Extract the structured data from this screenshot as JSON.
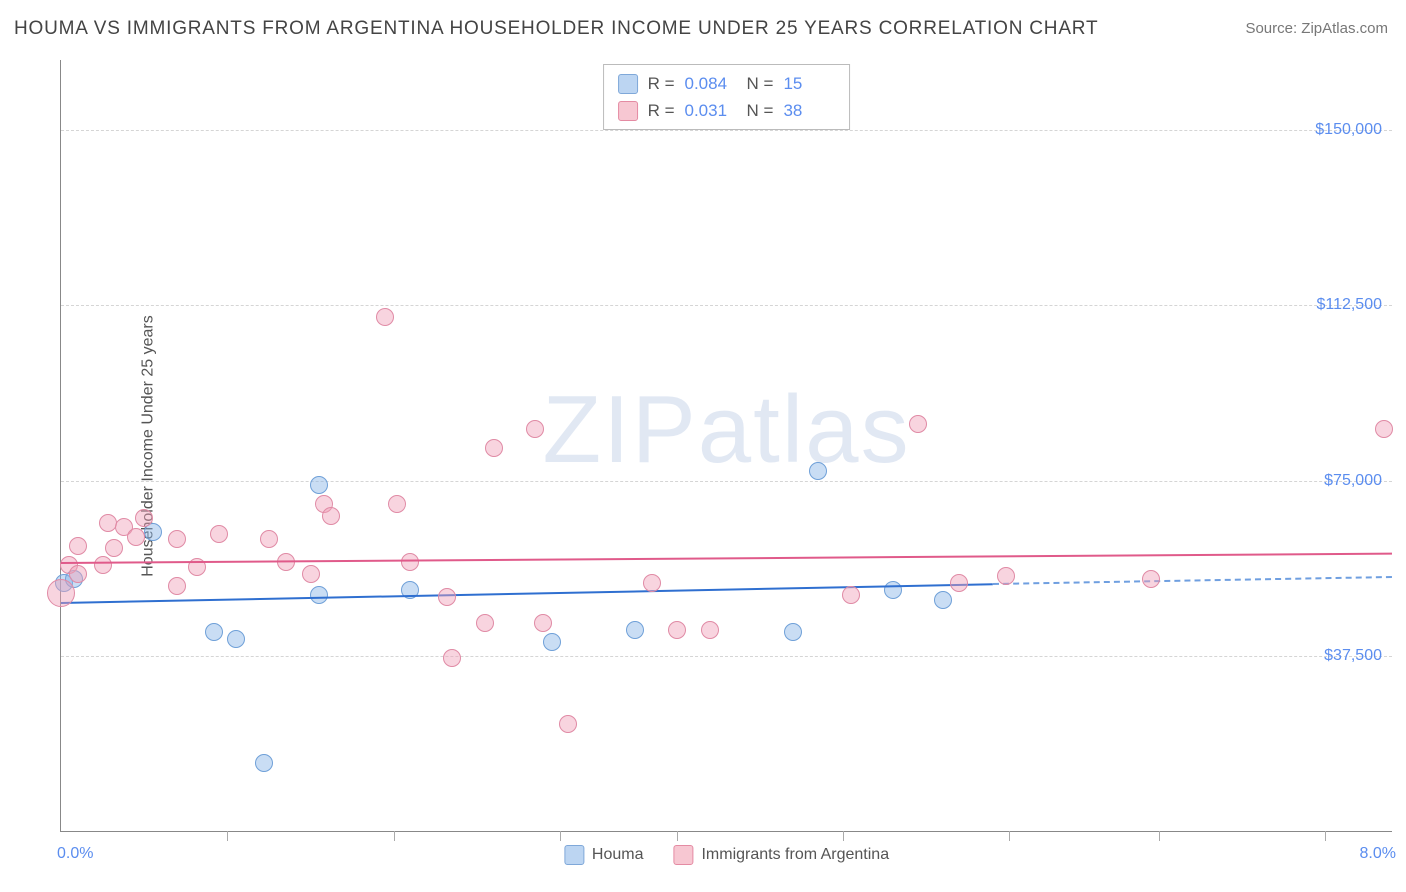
{
  "title": "HOUMA VS IMMIGRANTS FROM ARGENTINA HOUSEHOLDER INCOME UNDER 25 YEARS CORRELATION CHART",
  "source": "Source: ZipAtlas.com",
  "ylabel": "Householder Income Under 25 years",
  "watermark_a": "ZIP",
  "watermark_b": "atlas",
  "chart": {
    "type": "scatter",
    "xlim": [
      0,
      8
    ],
    "ylim": [
      0,
      165000
    ],
    "xaxis_min_label": "0.0%",
    "xaxis_max_label": "8.0%",
    "xticks": [
      1.0,
      2.0,
      3.0,
      3.7,
      4.7,
      5.7,
      6.6,
      7.6
    ],
    "ygrid": [
      37500,
      75000,
      112500,
      150000
    ],
    "ygrid_labels": [
      "$37,500",
      "$75,000",
      "$112,500",
      "$150,000"
    ],
    "grid_color": "#d5d5d5",
    "axis_color": "#888",
    "label_color": "#5b8def",
    "background_color": "#ffffff"
  },
  "correlation_legend": [
    {
      "swatch_fill": "#bcd5f2",
      "swatch_border": "#7fa8d9",
      "r_label": "R =",
      "r": "0.084",
      "n_label": "N =",
      "n": "15"
    },
    {
      "swatch_fill": "#f7c7d2",
      "swatch_border": "#e48ba3",
      "r_label": "R =",
      "r": "0.031",
      "n_label": "N =",
      "n": "38"
    }
  ],
  "series_legend": [
    {
      "swatch_fill": "#bcd5f2",
      "swatch_border": "#7fa8d9",
      "label": "Houma"
    },
    {
      "swatch_fill": "#f7c7d2",
      "swatch_border": "#e48ba3",
      "label": "Immigrants from Argentina"
    }
  ],
  "series": [
    {
      "name": "houma",
      "fill": "rgba(135, 180, 230, 0.45)",
      "stroke": "#6fa0d8",
      "marker_radius": 9,
      "trend_color": "#2f6fd0",
      "trend_dash_color": "#6f9fe0",
      "trend": {
        "x1": 0,
        "y1": 49000,
        "x2": 5.6,
        "y2": 53000,
        "dash_to_x": 8.0,
        "dash_to_y": 54500
      },
      "points": [
        {
          "x": 0.02,
          "y": 53000,
          "r": 9
        },
        {
          "x": 0.08,
          "y": 54000,
          "r": 9
        },
        {
          "x": 0.55,
          "y": 64000,
          "r": 9
        },
        {
          "x": 0.92,
          "y": 42500,
          "r": 9
        },
        {
          "x": 1.05,
          "y": 41000,
          "r": 9
        },
        {
          "x": 1.22,
          "y": 14500,
          "r": 9
        },
        {
          "x": 1.55,
          "y": 74000,
          "r": 9
        },
        {
          "x": 1.55,
          "y": 50500,
          "r": 9
        },
        {
          "x": 2.1,
          "y": 51500,
          "r": 9
        },
        {
          "x": 2.95,
          "y": 40500,
          "r": 9
        },
        {
          "x": 3.45,
          "y": 43000,
          "r": 9
        },
        {
          "x": 4.4,
          "y": 42500,
          "r": 9
        },
        {
          "x": 4.55,
          "y": 77000,
          "r": 9
        },
        {
          "x": 5.0,
          "y": 51500,
          "r": 9
        },
        {
          "x": 5.3,
          "y": 49500,
          "r": 9
        }
      ]
    },
    {
      "name": "argentina",
      "fill": "rgba(240, 160, 185, 0.45)",
      "stroke": "#e08aa5",
      "marker_radius": 9,
      "trend_color": "#e05a8a",
      "trend": {
        "x1": 0,
        "y1": 57500,
        "x2": 8.0,
        "y2": 59500
      },
      "points": [
        {
          "x": 0.0,
          "y": 51000,
          "r": 14
        },
        {
          "x": 0.05,
          "y": 57000,
          "r": 9
        },
        {
          "x": 0.1,
          "y": 55000,
          "r": 9
        },
        {
          "x": 0.1,
          "y": 61000,
          "r": 9
        },
        {
          "x": 0.25,
          "y": 57000,
          "r": 9
        },
        {
          "x": 0.28,
          "y": 66000,
          "r": 9
        },
        {
          "x": 0.32,
          "y": 60500,
          "r": 9
        },
        {
          "x": 0.38,
          "y": 65000,
          "r": 9
        },
        {
          "x": 0.45,
          "y": 63000,
          "r": 9
        },
        {
          "x": 0.5,
          "y": 67000,
          "r": 9
        },
        {
          "x": 0.7,
          "y": 52500,
          "r": 9
        },
        {
          "x": 0.7,
          "y": 62500,
          "r": 9
        },
        {
          "x": 0.82,
          "y": 56500,
          "r": 9
        },
        {
          "x": 0.95,
          "y": 63500,
          "r": 9
        },
        {
          "x": 1.25,
          "y": 62500,
          "r": 9
        },
        {
          "x": 1.35,
          "y": 57500,
          "r": 9
        },
        {
          "x": 1.58,
          "y": 70000,
          "r": 9
        },
        {
          "x": 1.62,
          "y": 67500,
          "r": 9
        },
        {
          "x": 1.5,
          "y": 55000,
          "r": 9
        },
        {
          "x": 1.95,
          "y": 110000,
          "r": 9
        },
        {
          "x": 2.02,
          "y": 70000,
          "r": 9
        },
        {
          "x": 2.1,
          "y": 57500,
          "r": 9
        },
        {
          "x": 2.32,
          "y": 50000,
          "r": 9
        },
        {
          "x": 2.35,
          "y": 37000,
          "r": 9
        },
        {
          "x": 2.55,
          "y": 44500,
          "r": 9
        },
        {
          "x": 2.6,
          "y": 82000,
          "r": 9
        },
        {
          "x": 2.85,
          "y": 86000,
          "r": 9
        },
        {
          "x": 2.9,
          "y": 44500,
          "r": 9
        },
        {
          "x": 3.05,
          "y": 23000,
          "r": 9
        },
        {
          "x": 3.55,
          "y": 53000,
          "r": 9
        },
        {
          "x": 3.7,
          "y": 43000,
          "r": 9
        },
        {
          "x": 3.9,
          "y": 43000,
          "r": 9
        },
        {
          "x": 4.75,
          "y": 50500,
          "r": 9
        },
        {
          "x": 5.15,
          "y": 87000,
          "r": 9
        },
        {
          "x": 5.4,
          "y": 53000,
          "r": 9
        },
        {
          "x": 5.68,
          "y": 54500,
          "r": 9
        },
        {
          "x": 6.55,
          "y": 54000,
          "r": 9
        },
        {
          "x": 7.95,
          "y": 86000,
          "r": 9
        }
      ]
    }
  ]
}
